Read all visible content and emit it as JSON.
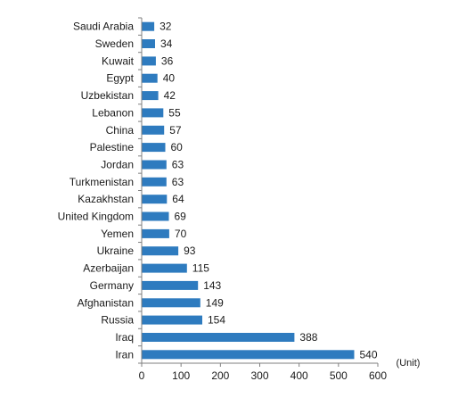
{
  "chart_data": {
    "type": "bar",
    "orientation": "horizontal",
    "categories": [
      "Saudi Arabia",
      "Sweden",
      "Kuwait",
      "Egypt",
      "Uzbekistan",
      "Lebanon",
      "China",
      "Palestine",
      "Jordan",
      "Turkmenistan",
      "Kazakhstan",
      "United Kingdom",
      "Yemen",
      "Ukraine",
      "Azerbaijan",
      "Germany",
      "Afghanistan",
      "Russia",
      "Iraq",
      "Iran"
    ],
    "values": [
      32,
      34,
      36,
      40,
      42,
      55,
      57,
      60,
      63,
      63,
      64,
      69,
      70,
      93,
      115,
      143,
      149,
      154,
      388,
      540
    ],
    "xlim": [
      0,
      600
    ],
    "xticks": [
      "0",
      "100",
      "200",
      "300",
      "400",
      "500",
      "600"
    ],
    "unit_label": "(Unit)",
    "grid": false,
    "bar_color": "#2e7bbf"
  }
}
